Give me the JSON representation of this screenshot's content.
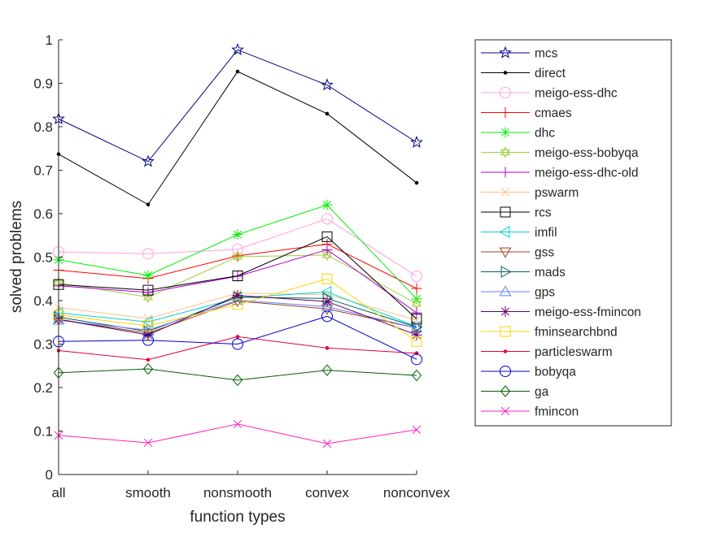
{
  "chart_data": {
    "type": "line",
    "title": "",
    "xlabel": "function types",
    "ylabel": "solved problems",
    "categories": [
      "all",
      "smooth",
      "nonsmooth",
      "convex",
      "nonconvex"
    ],
    "ylim": [
      0,
      1
    ],
    "yticks": [
      "0",
      "0.1",
      "0.2",
      "0.3",
      "0.4",
      "0.5",
      "0.6",
      "0.7",
      "0.8",
      "0.9",
      "1"
    ],
    "grid": false,
    "legend_position": "outside-right",
    "series": [
      {
        "name": "mcs",
        "color": "#000080",
        "marker": "star-icon",
        "values": [
          0.818,
          0.72,
          0.977,
          0.896,
          0.764
        ]
      },
      {
        "name": "direct",
        "color": "#000000",
        "marker": "dot-icon",
        "values": [
          0.737,
          0.621,
          0.927,
          0.83,
          0.671
        ]
      },
      {
        "name": "meigo-ess-dhc",
        "color": "#FFA0E0",
        "marker": "circle-icon",
        "values": [
          0.512,
          0.508,
          0.518,
          0.588,
          0.456
        ]
      },
      {
        "name": "cmaes",
        "color": "#FF0000",
        "marker": "plus-icon",
        "values": [
          0.47,
          0.451,
          0.503,
          0.53,
          0.428
        ]
      },
      {
        "name": "dhc",
        "color": "#00EE00",
        "marker": "asterisk-icon",
        "values": [
          0.494,
          0.458,
          0.552,
          0.62,
          0.404
        ]
      },
      {
        "name": "meigo-ess-bobyqa",
        "color": "#A0D040",
        "marker": "hexagram-icon",
        "values": [
          0.441,
          0.408,
          0.501,
          0.505,
          0.393
        ]
      },
      {
        "name": "meigo-ess-dhc-old",
        "color": "#B000D0",
        "marker": "plus-icon",
        "values": [
          0.434,
          0.419,
          0.456,
          0.517,
          0.372
        ]
      },
      {
        "name": "pswarm",
        "color": "#FFC080",
        "marker": "cross-icon",
        "values": [
          0.384,
          0.359,
          0.417,
          0.414,
          0.355
        ]
      },
      {
        "name": "rcs",
        "color": "#000000",
        "marker": "square-icon",
        "values": [
          0.437,
          0.424,
          0.457,
          0.547,
          0.358
        ]
      },
      {
        "name": "imfil",
        "color": "#00D0D0",
        "marker": "triangle-left-icon",
        "values": [
          0.372,
          0.351,
          0.406,
          0.42,
          0.34
        ]
      },
      {
        "name": "gss",
        "color": "#A04020",
        "marker": "triangle-down-icon",
        "values": [
          0.357,
          0.325,
          0.399,
          0.381,
          0.337
        ]
      },
      {
        "name": "mads",
        "color": "#006060",
        "marker": "triangle-right-icon",
        "values": [
          0.362,
          0.329,
          0.408,
          0.405,
          0.339
        ]
      },
      {
        "name": "gps",
        "color": "#6080FF",
        "marker": "triangle-up-icon",
        "values": [
          0.355,
          0.332,
          0.401,
          0.386,
          0.337
        ]
      },
      {
        "name": "meigo-ess-fmincon",
        "color": "#600060",
        "marker": "asterisk-icon",
        "values": [
          0.357,
          0.321,
          0.412,
          0.398,
          0.321
        ]
      },
      {
        "name": "fminsearchbnd",
        "color": "#FFD000",
        "marker": "square-icon",
        "values": [
          0.367,
          0.342,
          0.391,
          0.45,
          0.306
        ]
      },
      {
        "name": "particleswarm",
        "color": "#E00040",
        "marker": "dot-icon",
        "values": [
          0.285,
          0.264,
          0.317,
          0.291,
          0.279
        ]
      },
      {
        "name": "bobyqa",
        "color": "#0000D0",
        "marker": "circle-icon",
        "values": [
          0.306,
          0.309,
          0.3,
          0.364,
          0.265
        ]
      },
      {
        "name": "ga",
        "color": "#006000",
        "marker": "diamond-icon",
        "values": [
          0.234,
          0.243,
          0.217,
          0.24,
          0.228
        ]
      },
      {
        "name": "fmincon",
        "color": "#FF20C0",
        "marker": "cross-icon",
        "values": [
          0.09,
          0.073,
          0.116,
          0.071,
          0.103
        ]
      }
    ]
  }
}
